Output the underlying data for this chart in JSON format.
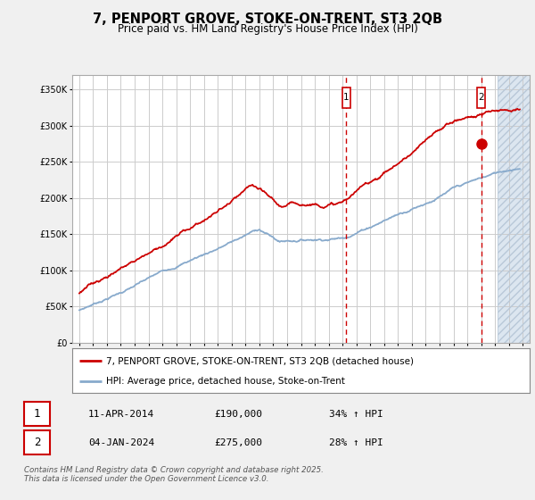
{
  "title1": "7, PENPORT GROVE, STOKE-ON-TRENT, ST3 2QB",
  "title2": "Price paid vs. HM Land Registry's House Price Index (HPI)",
  "bg_color": "#f0f0f0",
  "plot_bg": "#ffffff",
  "red_line_color": "#cc0000",
  "blue_line_color": "#88aacc",
  "purchase1_date": 2014.27,
  "purchase1_price": 190000,
  "purchase2_date": 2024.01,
  "purchase2_price": 275000,
  "ann1_label": "11-APR-2014",
  "ann1_price": "£190,000",
  "ann1_hpi": "34% ↑ HPI",
  "ann2_label": "04-JAN-2024",
  "ann2_price": "£275,000",
  "ann2_hpi": "28% ↑ HPI",
  "legend1": "7, PENPORT GROVE, STOKE-ON-TRENT, ST3 2QB (detached house)",
  "legend2": "HPI: Average price, detached house, Stoke-on-Trent",
  "footer": "Contains HM Land Registry data © Crown copyright and database right 2025.\nThis data is licensed under the Open Government Licence v3.0.",
  "xmin": 1994.5,
  "xmax": 2027.5,
  "ymin": 0,
  "ymax": 370000
}
